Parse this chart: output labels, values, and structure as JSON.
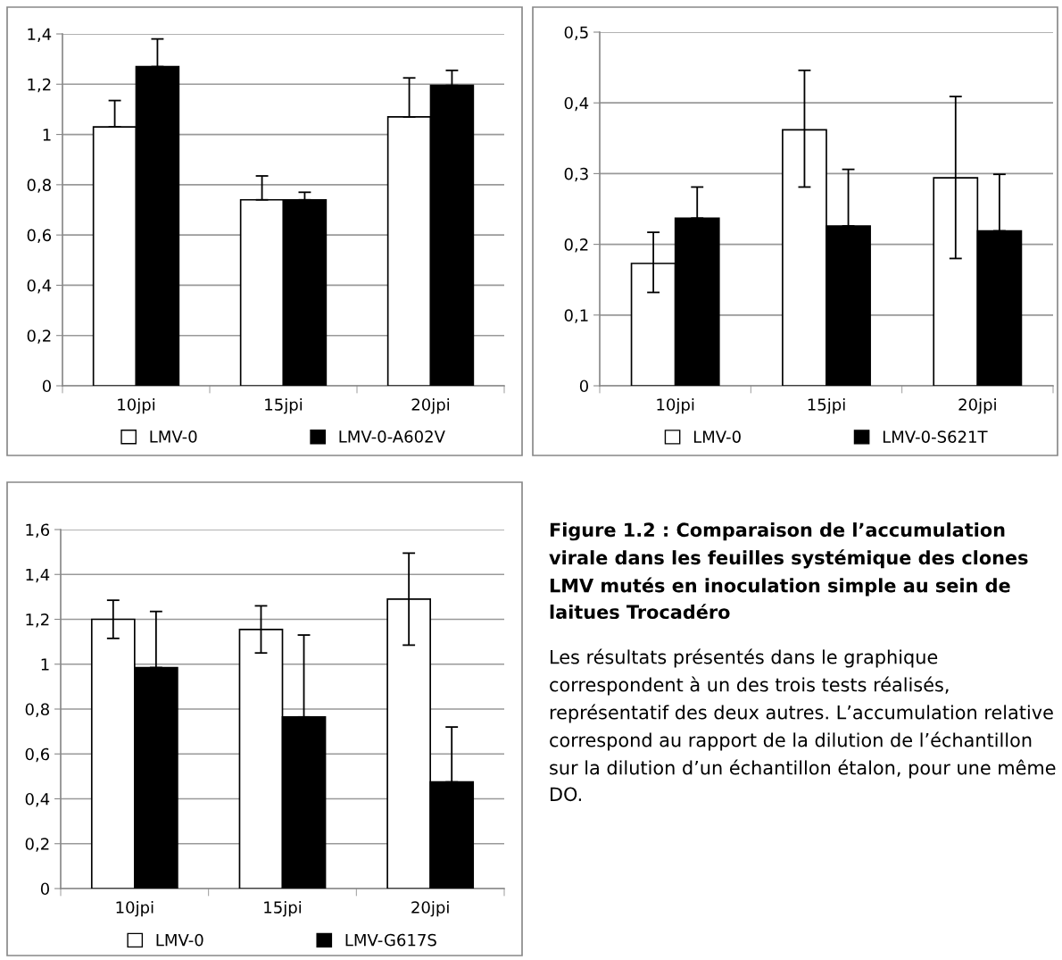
{
  "chart_data": [
    {
      "type": "bar",
      "categories": [
        "10jpi",
        "15jpi",
        "20jpi"
      ],
      "ylim": [
        0,
        1.4
      ],
      "yticks": [
        0,
        {
          "value": 0.2,
          "label": "0,2"
        },
        {
          "value": 0.4,
          "label": "0,4"
        },
        {
          "value": 0.6,
          "label": "0,6"
        },
        {
          "value": 0.8,
          "label": "0,8"
        },
        1,
        {
          "value": 1.2,
          "label": "1,2"
        },
        {
          "value": 1.4,
          "label": "1,4"
        }
      ],
      "grid": "y",
      "legend": "bottom",
      "series": [
        {
          "name": "LMV-0",
          "color": "#ffffff",
          "values": [
            1.03,
            0.74,
            1.07
          ],
          "errors": [
            [
              1.03,
              1.135
            ],
            [
              0.74,
              0.835
            ],
            [
              1.07,
              1.225
            ]
          ]
        },
        {
          "name": "LMV-0-A602V",
          "color": "#000000",
          "values": [
            1.27,
            0.74,
            1.195
          ],
          "errors": [
            [
              1.27,
              1.38
            ],
            [
              0.74,
              0.77
            ],
            [
              1.195,
              1.255
            ]
          ]
        }
      ]
    },
    {
      "type": "bar",
      "categories": [
        "10jpi",
        "15jpi",
        "20jpi"
      ],
      "ylim": [
        0,
        0.5
      ],
      "yticks": [
        0,
        {
          "value": 0.1,
          "label": "0,1"
        },
        {
          "value": 0.2,
          "label": "0,2"
        },
        {
          "value": 0.3,
          "label": "0,3"
        },
        {
          "value": 0.4,
          "label": "0,4"
        },
        {
          "value": 0.5,
          "label": "0,5"
        }
      ],
      "grid": "y",
      "legend": "bottom",
      "series": [
        {
          "name": "LMV-0",
          "color": "#ffffff",
          "values": [
            0.173,
            0.362,
            0.294
          ],
          "errors": [
            [
              0.132,
              0.217
            ],
            [
              0.281,
              0.446
            ],
            [
              0.18,
              0.409
            ]
          ]
        },
        {
          "name": "LMV-0-S621T",
          "color": "#000000",
          "values": [
            0.237,
            0.226,
            0.219
          ],
          "errors": [
            [
              0.237,
              0.281
            ],
            [
              0.226,
              0.306
            ],
            [
              0.219,
              0.299
            ]
          ]
        }
      ]
    },
    {
      "type": "bar",
      "categories": [
        "10jpi",
        "15jpi",
        "20jpi"
      ],
      "ylim": [
        0,
        1.6
      ],
      "yticks": [
        0,
        {
          "value": 0.2,
          "label": "0,2"
        },
        {
          "value": 0.4,
          "label": "0,4"
        },
        {
          "value": 0.6,
          "label": "0,6"
        },
        {
          "value": 0.8,
          "label": "0,8"
        },
        1,
        {
          "value": 1.2,
          "label": "1,2"
        },
        {
          "value": 1.4,
          "label": "1,4"
        },
        {
          "value": 1.6,
          "label": "1,6"
        }
      ],
      "grid": "y",
      "legend": "bottom",
      "series": [
        {
          "name": "LMV-0",
          "color": "#ffffff",
          "values": [
            1.2,
            1.155,
            1.29
          ],
          "errors": [
            [
              1.115,
              1.285
            ],
            [
              1.05,
              1.26
            ],
            [
              1.085,
              1.495
            ]
          ]
        },
        {
          "name": "LMV-G617S",
          "color": "#000000",
          "values": [
            0.985,
            0.765,
            0.475
          ],
          "errors": [
            [
              0.985,
              1.235
            ],
            [
              0.765,
              1.13
            ],
            [
              0.475,
              0.72
            ]
          ]
        }
      ]
    },
    {
      "type": "other",
      "title": "Figure 1.2 : Comparaison de l’accumulation virale dans les feuilles systémique des clones LMV mutés en inoculation simple au sein de laitues Trocadéro",
      "annotations": [
        "Les résultats présentés dans le graphique correspondent à un des trois tests réalisés, représentatif des deux autres. L’accumulation relative correspond au rapport de la dilution de l’échantillon sur la dilution d’un échantillon étalon, pour une même DO."
      ]
    }
  ]
}
